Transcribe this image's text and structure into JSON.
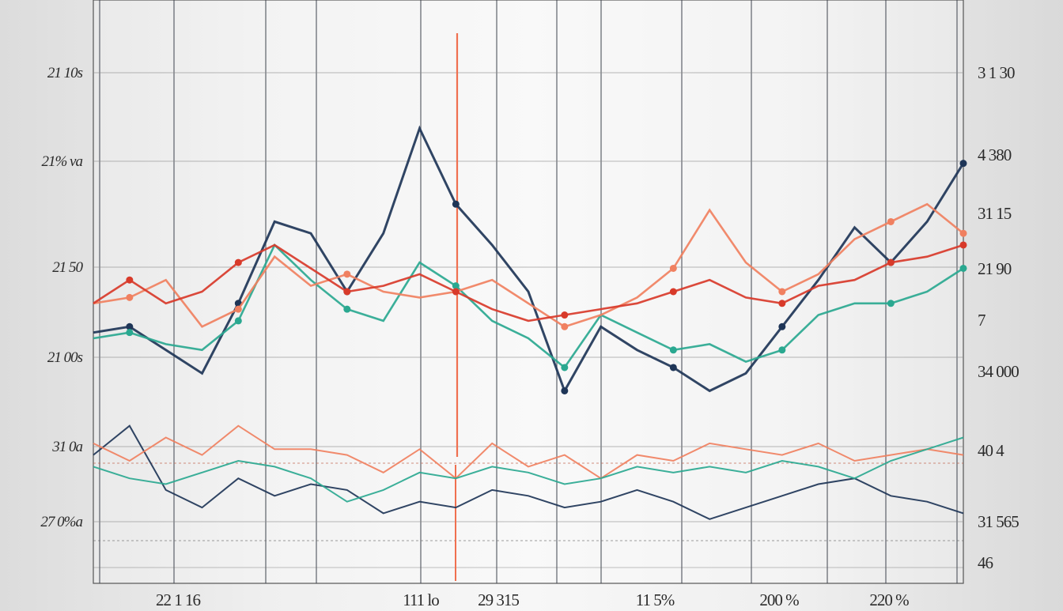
{
  "chart_data": {
    "type": "line",
    "title": "",
    "xlabel": "",
    "ylabel": "",
    "grid": true,
    "legend": "none",
    "left_tick_labels": [
      "21 10s",
      "21% va",
      "21 50",
      "21 00s",
      "31 0a",
      "27 0%a"
    ],
    "right_tick_labels": [
      "3 1 30",
      "4 380",
      "31 15",
      "21 90",
      "7",
      "34 000",
      "40 4",
      "31 565",
      "46"
    ],
    "bottom_tick_labels": [
      "22 1 16",
      "111 lo",
      "29 315",
      "11 5% ",
      "200 %",
      "220 %"
    ],
    "x": [
      0,
      1,
      2,
      3,
      4,
      5,
      6,
      7,
      8,
      9,
      10,
      11,
      12,
      13,
      14,
      15,
      16,
      17,
      18,
      19,
      20,
      21,
      22,
      23,
      24
    ],
    "series": [
      {
        "color": "#1e3557",
        "values": [
          43,
          44,
          40,
          36,
          48,
          62,
          60,
          50,
          60,
          78,
          65,
          58,
          50,
          33,
          44,
          40,
          37,
          33,
          36,
          44,
          52,
          61,
          55,
          62,
          72
        ]
      },
      {
        "color": "#2aa890",
        "values": [
          42,
          43,
          41,
          40,
          45,
          58,
          52,
          47,
          45,
          55,
          51,
          45,
          42,
          37,
          46,
          43,
          40,
          41,
          38,
          40,
          46,
          48,
          48,
          50,
          54
        ]
      },
      {
        "color": "#f08060",
        "values": [
          48,
          49,
          52,
          44,
          47,
          56,
          51,
          53,
          50,
          49,
          50,
          52,
          48,
          44,
          46,
          49,
          54,
          64,
          55,
          50,
          53,
          59,
          62,
          65,
          60
        ]
      },
      {
        "color": "#d83a2a",
        "values": [
          48,
          52,
          48,
          50,
          55,
          58,
          54,
          50,
          51,
          53,
          50,
          47,
          45,
          46,
          47,
          48,
          50,
          52,
          49,
          48,
          51,
          52,
          55,
          56,
          58
        ]
      },
      {
        "color": "#1e3557",
        "values": [
          22,
          27,
          16,
          13,
          18,
          15,
          17,
          16,
          12,
          14,
          13,
          16,
          15,
          13,
          14,
          16,
          14,
          11,
          13,
          15,
          17,
          18,
          15,
          14,
          12
        ]
      },
      {
        "color": "#f08060",
        "values": [
          24,
          21,
          25,
          22,
          27,
          23,
          23,
          22,
          19,
          23,
          18,
          24,
          20,
          22,
          18,
          22,
          21,
          24,
          23,
          22,
          24,
          21,
          22,
          23,
          22
        ]
      },
      {
        "color": "#2aa890",
        "values": [
          20,
          18,
          17,
          19,
          21,
          20,
          18,
          14,
          16,
          19,
          18,
          20,
          19,
          17,
          18,
          20,
          19,
          20,
          19,
          21,
          20,
          18,
          21,
          23,
          25
        ]
      }
    ],
    "ylim": [
      0,
      100
    ],
    "accent_colors": {
      "navy": "#1e3557",
      "teal": "#2aa890",
      "coral": "#f08060",
      "red": "#d83a2a",
      "orange_marker": "#f07050"
    }
  }
}
